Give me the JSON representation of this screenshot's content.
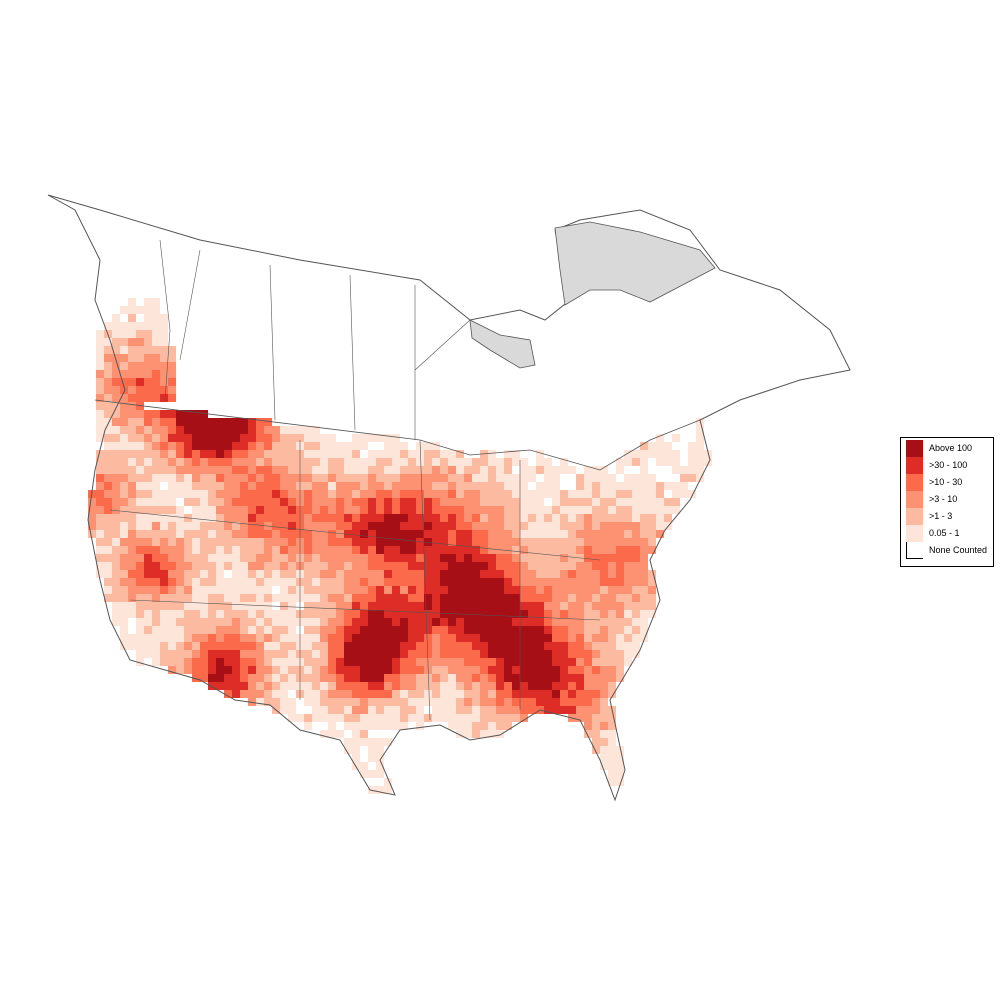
{
  "legend": {
    "items": [
      {
        "label": "Above 100",
        "color": "#a50f15"
      },
      {
        "label": ">30 - 100",
        "color": "#de2d26"
      },
      {
        "label": ">10 - 30",
        "color": "#fb6a4a"
      },
      {
        "label": ">3 - 10",
        "color": "#fc9272"
      },
      {
        "label": ">1 - 3",
        "color": "#fcbba1"
      },
      {
        "label": "0.05 - 1",
        "color": "#fee5d9"
      },
      {
        "label": "None Counted",
        "color": "#ffffff"
      }
    ]
  },
  "map": {
    "outline_color": "#555555",
    "no_data_color": "#d9d9d9"
  }
}
